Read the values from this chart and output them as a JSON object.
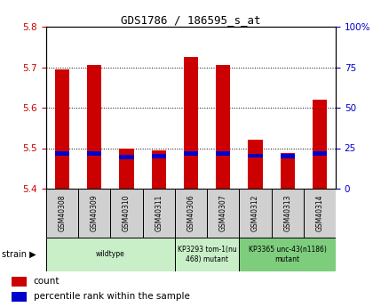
{
  "title": "GDS1786 / 186595_s_at",
  "samples": [
    "GSM40308",
    "GSM40309",
    "GSM40310",
    "GSM40311",
    "GSM40306",
    "GSM40307",
    "GSM40312",
    "GSM40313",
    "GSM40314"
  ],
  "red_values": [
    5.695,
    5.705,
    5.5,
    5.495,
    5.725,
    5.705,
    5.52,
    5.488,
    5.62
  ],
  "blue_values": [
    5.487,
    5.487,
    5.478,
    5.48,
    5.487,
    5.487,
    5.481,
    5.48,
    5.487
  ],
  "ylim": [
    5.4,
    5.8
  ],
  "yticks_left": [
    5.4,
    5.5,
    5.6,
    5.7,
    5.8
  ],
  "yticks_right": [
    0,
    25,
    50,
    75,
    100
  ],
  "strain_groups": [
    {
      "label": "wildtype",
      "start": 0,
      "end": 4,
      "color": "#c8efc8"
    },
    {
      "label": "KP3293 tom-1(nu\n468) mutant",
      "start": 4,
      "end": 6,
      "color": "#c8efc8"
    },
    {
      "label": "KP3365 unc-43(n1186)\nmutant",
      "start": 6,
      "end": 9,
      "color": "#7dcd7d"
    }
  ],
  "bar_color": "#cc0000",
  "blue_color": "#0000cc",
  "tick_color_left": "#cc0000",
  "tick_color_right": "#0000cc",
  "bar_width": 0.45,
  "blue_bar_height": 0.01
}
